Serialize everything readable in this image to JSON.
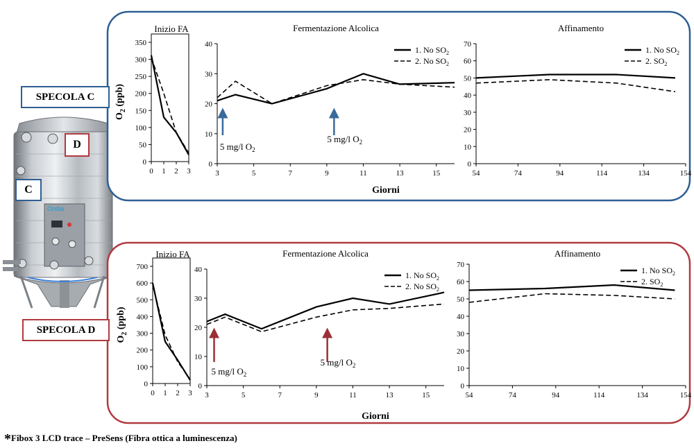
{
  "labels": {
    "specola_c": "SPECOLA C",
    "specola_d": "SPECOLA D",
    "marker_c": "C",
    "marker_d": "D",
    "tank_brand": "Ondia"
  },
  "footnote": {
    "star": "*",
    "text": "Fibox 3 LCD trace – PreSens (Fibra ottica a luminescenza)"
  },
  "colors": {
    "panel_c_border": "#2e5f93",
    "panel_d_border": "#b03a3f",
    "arrow_c": "#3a6a9c",
    "arrow_d": "#9a3035",
    "label_c_border": "#2e5f93",
    "label_d_border": "#b03a3f"
  },
  "chart_data": [
    {
      "id": "c_inizio",
      "type": "line",
      "title": "Inizio FA",
      "ylabel_main": "O",
      "ylabel_sub": "2",
      "ylabel_tail": " (ppb)",
      "xlim": [
        0,
        3
      ],
      "ylim": [
        0,
        350
      ],
      "xticks": [
        0,
        1,
        2,
        3
      ],
      "yticks": [
        0,
        50,
        100,
        150,
        200,
        250,
        300,
        350
      ],
      "series": [
        {
          "style": "solid",
          "x": [
            0,
            1,
            2,
            3
          ],
          "y": [
            312,
            130,
            85,
            20
          ]
        },
        {
          "style": "dashed",
          "x": [
            0,
            1,
            2,
            3
          ],
          "y": [
            305,
            200,
            85,
            25
          ]
        }
      ]
    },
    {
      "id": "c_fa",
      "type": "line",
      "title": "Fermentazione Alcolica",
      "xlabel": "Giorni",
      "xlim": [
        3,
        16
      ],
      "ylim": [
        0,
        40
      ],
      "xticks": [
        3,
        5,
        7,
        9,
        11,
        13,
        15
      ],
      "yticks": [
        0,
        10,
        20,
        30,
        40
      ],
      "series": [
        {
          "name_main": "1. No SO",
          "name_sub": "2",
          "style": "solid",
          "x": [
            3,
            4,
            6,
            9,
            11,
            13,
            16
          ],
          "y": [
            21,
            23,
            20,
            25,
            30,
            26.5,
            27
          ]
        },
        {
          "name_main": "2. No SO",
          "name_sub": "2",
          "style": "dashed",
          "x": [
            3,
            4,
            6,
            9,
            11,
            13,
            16
          ],
          "y": [
            22,
            27.5,
            20,
            26,
            28,
            26.5,
            25.5
          ]
        }
      ],
      "annotations": [
        {
          "text_main": "5 mg/l O",
          "text_sub": "2",
          "x": 3.3
        },
        {
          "text_main": "5 mg/l O",
          "text_sub": "2",
          "x": 9.4
        }
      ]
    },
    {
      "id": "c_aff",
      "type": "line",
      "title": "Affinamento",
      "xlim": [
        54,
        154
      ],
      "ylim": [
        0,
        70
      ],
      "xticks": [
        54,
        74,
        94,
        114,
        134,
        154
      ],
      "yticks": [
        0,
        10,
        20,
        30,
        40,
        50,
        60,
        70
      ],
      "series": [
        {
          "name_main": "1. No SO",
          "name_sub": "2",
          "style": "solid",
          "x": [
            54,
            89,
            121,
            149
          ],
          "y": [
            50,
            52,
            52,
            50
          ]
        },
        {
          "name_main": "2. SO",
          "name_sub": "2",
          "style": "dashed",
          "x": [
            54,
            89,
            121,
            149
          ],
          "y": [
            47,
            49,
            47,
            42
          ]
        }
      ]
    },
    {
      "id": "d_inizio",
      "type": "line",
      "title": "Inizio FA",
      "ylabel_main": "O",
      "ylabel_sub": "2",
      "ylabel_tail": " (ppb)",
      "xlim": [
        0,
        3
      ],
      "ylim": [
        0,
        700
      ],
      "xticks": [
        0,
        1,
        2,
        3
      ],
      "yticks": [
        0,
        100,
        200,
        300,
        400,
        500,
        600,
        700
      ],
      "series": [
        {
          "style": "solid",
          "x": [
            0,
            1,
            2,
            3
          ],
          "y": [
            600,
            250,
            140,
            20
          ]
        },
        {
          "style": "dashed",
          "x": [
            0,
            1,
            2,
            3
          ],
          "y": [
            590,
            290,
            130,
            25
          ]
        }
      ]
    },
    {
      "id": "d_fa",
      "type": "line",
      "title": "Fermentazione Alcolica",
      "xlabel": "Giorni",
      "xlim": [
        3,
        16
      ],
      "ylim": [
        0,
        40
      ],
      "xticks": [
        3,
        5,
        7,
        9,
        11,
        13,
        15
      ],
      "yticks": [
        0,
        10,
        20,
        30,
        40
      ],
      "series": [
        {
          "name_main": "1. No SO",
          "name_sub": "2",
          "style": "solid",
          "x": [
            3,
            4,
            6,
            9,
            11,
            13,
            16
          ],
          "y": [
            22,
            24.5,
            19.5,
            27,
            30,
            28,
            32
          ]
        },
        {
          "name_main": "2. No SO",
          "name_sub": "2",
          "style": "dashed",
          "x": [
            3,
            4,
            6,
            9,
            11,
            13,
            16
          ],
          "y": [
            21,
            23.5,
            18.5,
            23.5,
            26,
            26.5,
            28
          ]
        }
      ],
      "annotations": [
        {
          "text_main": "5 mg/l O",
          "text_sub": "2",
          "x": 3.4
        },
        {
          "text_main": "5 mg/l O",
          "text_sub": "2",
          "x": 9.6
        }
      ]
    },
    {
      "id": "d_aff",
      "type": "line",
      "title": "Affinamento",
      "xlim": [
        54,
        154
      ],
      "ylim": [
        0,
        70
      ],
      "xticks": [
        54,
        74,
        94,
        114,
        134,
        154
      ],
      "yticks": [
        0,
        10,
        20,
        30,
        40,
        50,
        60,
        70
      ],
      "series": [
        {
          "name_main": "1. No SO",
          "name_sub": "2",
          "style": "solid",
          "x": [
            54,
            89,
            121,
            149
          ],
          "y": [
            55,
            56,
            58,
            55
          ]
        },
        {
          "name_main": "2. SO",
          "name_sub": "2",
          "style": "dashed",
          "x": [
            54,
            89,
            121,
            149
          ],
          "y": [
            48,
            53,
            52,
            50
          ]
        }
      ]
    }
  ]
}
